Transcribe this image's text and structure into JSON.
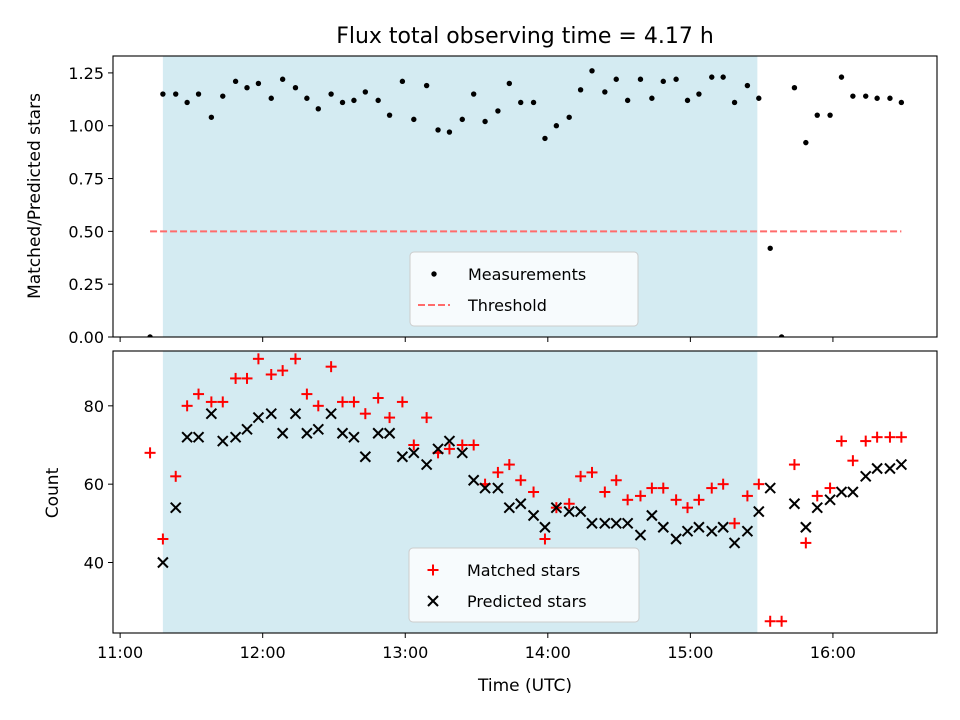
{
  "chart_data": {
    "type": "scatter",
    "title": "Flux total observing time = 4.17 h",
    "xlabel": "Time (UTC)",
    "xlim": [
      10.95,
      16.73
    ],
    "xticks": [
      {
        "value": 11,
        "label": "11:00"
      },
      {
        "value": 12,
        "label": "12:00"
      },
      {
        "value": 13,
        "label": "13:00"
      },
      {
        "value": 14,
        "label": "14:00"
      },
      {
        "value": 15,
        "label": "15:00"
      },
      {
        "value": 16,
        "label": "16:00"
      }
    ],
    "shaded_interval": {
      "start": 11.3,
      "end": 15.47,
      "color": "#add8e6"
    },
    "colors": {
      "measurements": "#000000",
      "threshold": "#ff6b6b",
      "matched": "#ff0000",
      "predicted": "#000000",
      "shade": "#add8e6"
    },
    "panels": [
      {
        "id": "ratio",
        "ylabel": "Matched/Predicted stars",
        "ylim": [
          0,
          1.33
        ],
        "yticks": [
          {
            "value": 0.0,
            "label": "0.00"
          },
          {
            "value": 0.25,
            "label": "0.25"
          },
          {
            "value": 0.5,
            "label": "0.50"
          },
          {
            "value": 0.75,
            "label": "0.75"
          },
          {
            "value": 1.0,
            "label": "1.00"
          },
          {
            "value": 1.25,
            "label": "1.25"
          }
        ],
        "legend": {
          "position": "lower center",
          "entries": [
            "Measurements",
            "Threshold"
          ]
        },
        "series": [
          {
            "name": "Measurements",
            "marker": "dot",
            "x": [
              11.21,
              11.3,
              11.39,
              11.47,
              11.55,
              11.64,
              11.72,
              11.81,
              11.89,
              11.97,
              12.06,
              12.14,
              12.23,
              12.31,
              12.39,
              12.48,
              12.56,
              12.64,
              12.72,
              12.81,
              12.89,
              12.98,
              13.06,
              13.15,
              13.23,
              13.31,
              13.4,
              13.48,
              13.56,
              13.65,
              13.73,
              13.81,
              13.9,
              13.98,
              14.06,
              14.15,
              14.23,
              14.31,
              14.4,
              14.48,
              14.56,
              14.65,
              14.73,
              14.81,
              14.9,
              14.98,
              15.06,
              15.15,
              15.23,
              15.31,
              15.4,
              15.48,
              15.56,
              15.64,
              15.73,
              15.81,
              15.89,
              15.98,
              16.06,
              16.14,
              16.23,
              16.31,
              16.4,
              16.48
            ],
            "y": [
              0.0,
              1.15,
              1.15,
              1.11,
              1.15,
              1.04,
              1.14,
              1.21,
              1.18,
              1.2,
              1.13,
              1.22,
              1.18,
              1.13,
              1.08,
              1.15,
              1.11,
              1.12,
              1.16,
              1.12,
              1.05,
              1.21,
              1.03,
              1.19,
              0.98,
              0.97,
              1.03,
              1.15,
              1.02,
              1.07,
              1.2,
              1.11,
              1.11,
              0.94,
              1.0,
              1.04,
              1.17,
              1.26,
              1.16,
              1.22,
              1.12,
              1.22,
              1.13,
              1.21,
              1.22,
              1.12,
              1.15,
              1.23,
              1.23,
              1.11,
              1.19,
              1.13,
              0.42,
              0.0,
              1.18,
              0.92,
              1.05,
              1.05,
              1.23,
              1.14,
              1.14,
              1.13,
              1.13,
              1.11
            ]
          },
          {
            "name": "Threshold",
            "marker": "dashed-line",
            "x": [
              11.21,
              16.48
            ],
            "y": [
              0.5,
              0.5
            ]
          }
        ]
      },
      {
        "id": "counts",
        "ylabel": "Count",
        "ylim": [
          22,
          94
        ],
        "yticks": [
          {
            "value": 40,
            "label": "40"
          },
          {
            "value": 60,
            "label": "60"
          },
          {
            "value": 80,
            "label": "80"
          }
        ],
        "legend": {
          "position": "lower center",
          "entries": [
            "Matched stars",
            "Predicted stars"
          ]
        },
        "series": [
          {
            "name": "Matched stars",
            "marker": "plus",
            "x": [
              11.21,
              11.3,
              11.39,
              11.47,
              11.55,
              11.64,
              11.72,
              11.81,
              11.89,
              11.97,
              12.06,
              12.14,
              12.23,
              12.31,
              12.39,
              12.48,
              12.56,
              12.64,
              12.72,
              12.81,
              12.89,
              12.98,
              13.06,
              13.15,
              13.23,
              13.31,
              13.4,
              13.48,
              13.56,
              13.65,
              13.73,
              13.81,
              13.9,
              13.98,
              14.06,
              14.15,
              14.23,
              14.31,
              14.4,
              14.48,
              14.56,
              14.65,
              14.73,
              14.81,
              14.9,
              14.98,
              15.06,
              15.15,
              15.23,
              15.31,
              15.4,
              15.48,
              15.56,
              15.64,
              15.73,
              15.81,
              15.89,
              15.98,
              16.06,
              16.14,
              16.23,
              16.31,
              16.4,
              16.48
            ],
            "y": [
              68,
              46,
              62,
              80,
              83,
              81,
              81,
              87,
              87,
              92,
              88,
              89,
              92,
              83,
              80,
              90,
              81,
              81,
              78,
              82,
              77,
              81,
              70,
              77,
              68,
              69,
              70,
              70,
              60,
              63,
              65,
              61,
              58,
              46,
              54,
              55,
              62,
              63,
              58,
              61,
              56,
              57,
              59,
              59,
              56,
              54,
              56,
              59,
              60,
              50,
              57,
              60,
              25,
              25,
              65,
              45,
              57,
              59,
              71,
              66,
              71,
              72,
              72,
              72
            ]
          },
          {
            "name": "Predicted stars",
            "marker": "x",
            "x": [
              11.3,
              11.39,
              11.47,
              11.55,
              11.64,
              11.72,
              11.81,
              11.89,
              11.97,
              12.06,
              12.14,
              12.23,
              12.31,
              12.39,
              12.48,
              12.56,
              12.64,
              12.72,
              12.81,
              12.89,
              12.98,
              13.06,
              13.15,
              13.23,
              13.31,
              13.4,
              13.48,
              13.56,
              13.65,
              13.73,
              13.81,
              13.9,
              13.98,
              14.06,
              14.15,
              14.23,
              14.31,
              14.4,
              14.48,
              14.56,
              14.65,
              14.73,
              14.81,
              14.9,
              14.98,
              15.06,
              15.15,
              15.23,
              15.31,
              15.4,
              15.48,
              15.56,
              15.73,
              15.81,
              15.89,
              15.98,
              16.06,
              16.14,
              16.23,
              16.31,
              16.4,
              16.48
            ],
            "y": [
              40,
              54,
              72,
              72,
              78,
              71,
              72,
              74,
              77,
              78,
              73,
              78,
              73,
              74,
              78,
              73,
              72,
              67,
              73,
              73,
              67,
              68,
              65,
              69,
              71,
              68,
              61,
              59,
              59,
              54,
              55,
              52,
              49,
              54,
              53,
              53,
              50,
              50,
              50,
              50,
              47,
              52,
              49,
              46,
              48,
              49,
              48,
              49,
              45,
              48,
              53,
              59,
              55,
              49,
              54,
              56,
              58,
              58,
              62,
              64,
              64,
              65
            ]
          }
        ]
      }
    ]
  }
}
